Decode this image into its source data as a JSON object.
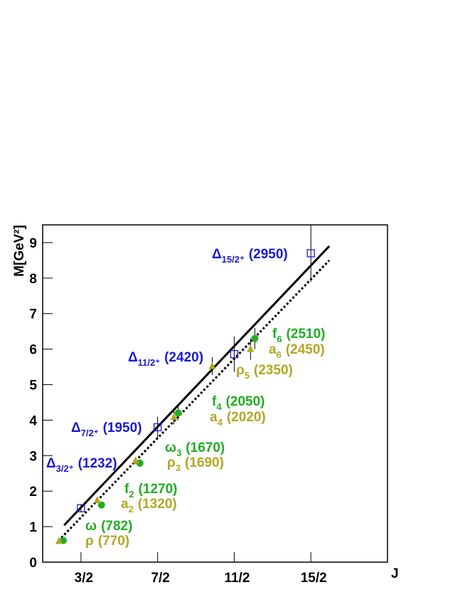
{
  "chart_data": {
    "type": "scatter",
    "x_label": "J",
    "y_label": "M[GeV²]",
    "xlim": [
      0.5,
      9.5
    ],
    "ylim": [
      0,
      9.5
    ],
    "xticks": [
      {
        "value": 1.5,
        "label": "3/2"
      },
      {
        "value": 3.5,
        "label": "7/2"
      },
      {
        "value": 5.5,
        "label": "11/2"
      },
      {
        "value": 7.5,
        "label": "15/2"
      }
    ],
    "yticks": [
      0,
      1,
      2,
      3,
      4,
      5,
      6,
      7,
      8,
      9
    ],
    "series": [
      {
        "marker": "square",
        "color": "#1a1ad6",
        "x": [
          1.5,
          3.5,
          5.5,
          7.5
        ],
        "values": [
          1.52,
          3.8,
          5.86,
          8.7
        ],
        "errors": [
          0.1,
          0.3,
          0.5,
          0.8
        ],
        "labels": [
          {
            "base": "Δ",
            "sub": "3/2⁺",
            "text": "(1232)"
          },
          {
            "base": "Δ",
            "sub": "7/2⁺",
            "text": "(1950)"
          },
          {
            "base": "Δ",
            "sub": "11/2⁺",
            "text": "(2420)"
          },
          {
            "base": "Δ",
            "sub": "15/2⁺",
            "text": "(2950)"
          }
        ]
      },
      {
        "marker": "circle",
        "color": "#1fae1f",
        "x": [
          1,
          2,
          3,
          4,
          6
        ],
        "values": [
          0.61,
          1.61,
          2.79,
          4.2,
          6.3
        ],
        "errors": [
          0.02,
          0.05,
          0.1,
          0.2,
          0.3
        ],
        "labels": [
          {
            "base": "ω",
            "sub": "",
            "text": "(782)"
          },
          {
            "base": "f",
            "sub": "2",
            "text": "(1270)"
          },
          {
            "base": "ω",
            "sub": "3",
            "text": "(1670)"
          },
          {
            "base": "f",
            "sub": "4",
            "text": "(2050)"
          },
          {
            "base": "f",
            "sub": "6",
            "text": "(2510)"
          }
        ]
      },
      {
        "marker": "triangle",
        "color": "#b0a822",
        "x": [
          1,
          2,
          3,
          4,
          5,
          6
        ],
        "values": [
          0.59,
          1.74,
          2.86,
          4.08,
          5.52,
          6.0
        ],
        "errors": [
          0.02,
          0.05,
          0.1,
          0.2,
          0.25,
          0.3
        ],
        "labels": [
          {
            "base": "ρ",
            "sub": "",
            "text": "(770)"
          },
          {
            "base": "a",
            "sub": "2",
            "text": "(1320)"
          },
          {
            "base": "ρ",
            "sub": "3",
            "text": "(1690)"
          },
          {
            "base": "a",
            "sub": "4",
            "text": "(2020)"
          },
          {
            "base": "ρ",
            "sub": "5",
            "text": "(2350)"
          },
          {
            "base": "a",
            "sub": "6",
            "text": "(2450)"
          }
        ]
      }
    ],
    "lines": [
      {
        "style": "solid",
        "x": [
          1.06,
          7.98
        ],
        "values": [
          1.04,
          8.9
        ]
      },
      {
        "style": "dotted",
        "x": [
          0.91,
          7.98
        ],
        "values": [
          0.6,
          8.5
        ]
      }
    ]
  }
}
